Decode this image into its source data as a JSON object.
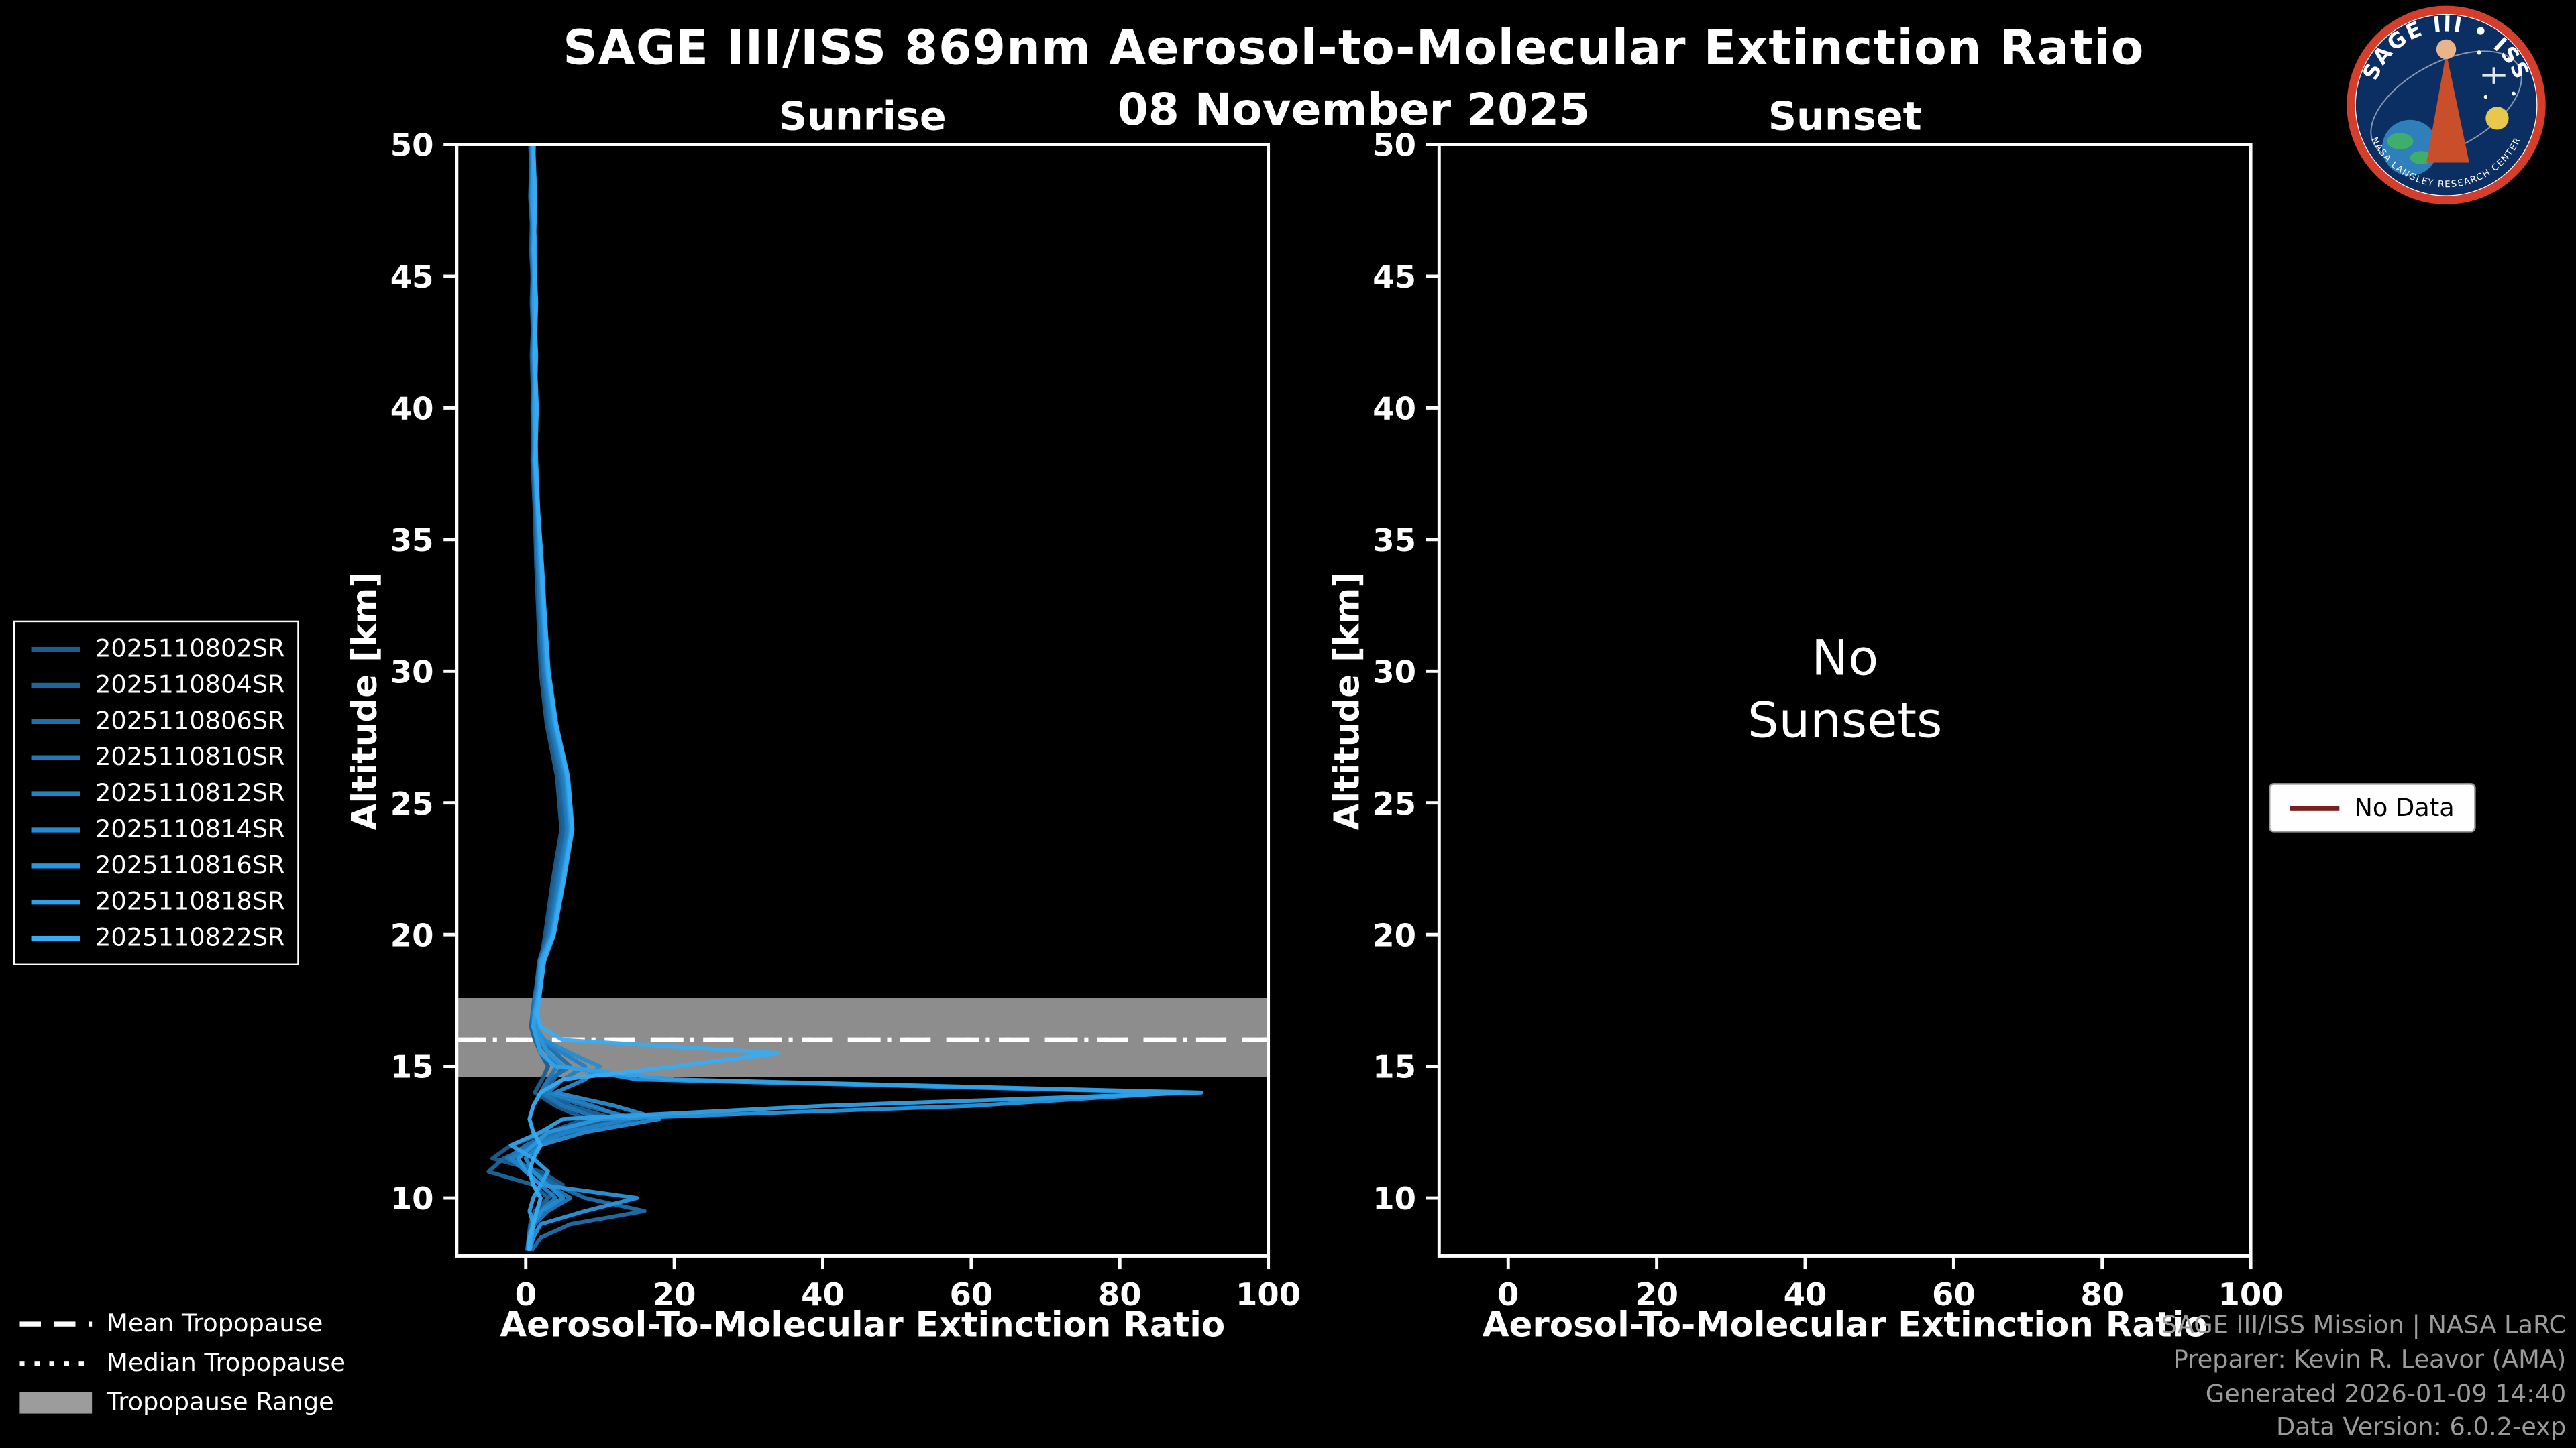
{
  "page": {
    "title": "SAGE III/ISS 869nm Aerosol-to-Molecular Extinction Ratio",
    "date": "08 November 2025",
    "footer": {
      "line1": "SAGE III/ISS Mission | NASA LaRC",
      "line2": "Preparer: Kevin R. Leavor (AMA)",
      "line3": "Generated 2026-01-09 14:40",
      "line4": "Data Version: 6.0.2-exp"
    }
  },
  "logo": {
    "title": "SAGE III • ISS",
    "ring_text": "NASA LANGLEY RESEARCH CENTER"
  },
  "panels": {
    "sunrise": {
      "label": "Sunrise"
    },
    "sunset": {
      "label": "Sunset",
      "empty_line1": "No",
      "empty_line2": "Sunsets"
    }
  },
  "axes": {
    "xlabel": "Aerosol-To-Molecular Extinction Ratio",
    "ylabel": "Altitude [km]",
    "xlim": [
      -9.3,
      100
    ],
    "ylim": [
      7.8,
      50
    ],
    "xticks": [
      0,
      20,
      40,
      60,
      80,
      100
    ],
    "yticks": [
      10,
      15,
      20,
      25,
      30,
      35,
      40,
      45,
      50
    ]
  },
  "legends": {
    "tropopause": {
      "mean_label": "Mean Tropopause",
      "median_label": "Median Tropopause",
      "range_label": "Tropopause Range"
    },
    "no_data": {
      "label": "No Data",
      "color": "#7a1f1f"
    }
  },
  "chart_data": {
    "type": "line",
    "title": "SAGE III/ISS 869nm Aerosol-to-Molecular Extinction Ratio",
    "subtitle": "08 November 2025",
    "xlabel": "Aerosol-To-Molecular Extinction Ratio",
    "ylabel": "Altitude [km]",
    "xlim": [
      -9.3,
      100
    ],
    "ylim": [
      7.8,
      50
    ],
    "grid": false,
    "tropopause": {
      "mean_km": 16.0,
      "median_km": 16.0,
      "range_km": [
        14.6,
        17.6
      ]
    },
    "altitudes_km": [
      50,
      48,
      46,
      44,
      42,
      40,
      38,
      36,
      34,
      32,
      30,
      28,
      26,
      24,
      22,
      20,
      19,
      18,
      17.5,
      17,
      16.5,
      16,
      15.5,
      15,
      14.5,
      14,
      13.5,
      13,
      12.5,
      12,
      11.5,
      11,
      10.5,
      10,
      9.5,
      9,
      8.5,
      8
    ],
    "series": [
      {
        "name": "2025110802SR",
        "color": "#1b5e8f",
        "values": [
          0.6,
          0.9,
          0.7,
          1.1,
          0.8,
          1.0,
          0.9,
          1.2,
          1.4,
          1.7,
          2.0,
          2.8,
          4.2,
          4.8,
          3.6,
          2.6,
          2.0,
          1.5,
          1.2,
          0.9,
          0.7,
          1.2,
          2.0,
          3.0,
          2.2,
          1.2,
          4.0,
          8.0,
          3.0,
          -2.0,
          -4.5,
          2.0,
          5.0,
          3.0,
          1.2,
          0.6,
          0.4,
          0.3
        ]
      },
      {
        "name": "2025110804SR",
        "color": "#1d669c",
        "values": [
          0.8,
          0.6,
          1.0,
          0.8,
          1.1,
          0.9,
          1.1,
          1.3,
          1.6,
          1.9,
          2.3,
          3.1,
          4.6,
          5.2,
          3.9,
          2.9,
          1.8,
          1.4,
          1.1,
          0.9,
          0.8,
          1.5,
          3.0,
          5.0,
          3.8,
          2.0,
          6.0,
          12.0,
          5.0,
          1.0,
          -3.0,
          -5.0,
          1.0,
          3.0,
          2.0,
          1.0,
          0.5,
          0.3
        ]
      },
      {
        "name": "2025110806SR",
        "color": "#1f6fab",
        "values": [
          0.7,
          1.0,
          0.8,
          1.2,
          0.9,
          1.2,
          1.0,
          1.4,
          1.7,
          2.0,
          2.4,
          3.3,
          4.8,
          5.5,
          4.2,
          3.1,
          2.1,
          1.6,
          1.3,
          1.0,
          1.2,
          2.0,
          4.0,
          6.0,
          3.2,
          2.2,
          8.0,
          15.0,
          6.0,
          2.0,
          -1.5,
          1.0,
          4.0,
          8.0,
          16.0,
          6.0,
          2.0,
          0.8
        ]
      },
      {
        "name": "2025110810SR",
        "color": "#2178b8",
        "values": [
          0.9,
          0.7,
          1.1,
          0.9,
          1.2,
          1.0,
          1.2,
          1.4,
          1.6,
          2.0,
          2.5,
          3.4,
          5.0,
          5.6,
          4.4,
          3.2,
          1.9,
          1.5,
          1.2,
          1.0,
          1.0,
          1.8,
          3.0,
          4.2,
          3.0,
          2.0,
          5.0,
          10.0,
          4.0,
          0.0,
          -2.5,
          1.0,
          3.0,
          6.0,
          3.0,
          1.2,
          0.5,
          0.3
        ]
      },
      {
        "name": "2025110812SR",
        "color": "#2382c5",
        "values": [
          0.8,
          1.1,
          0.9,
          1.3,
          1.0,
          1.3,
          1.1,
          1.5,
          1.8,
          2.2,
          2.7,
          3.6,
          5.2,
          5.8,
          4.6,
          3.4,
          2.0,
          1.7,
          1.4,
          1.1,
          1.0,
          2.0,
          5.0,
          8.0,
          5.0,
          3.0,
          9.0,
          14.0,
          5.5,
          1.0,
          -2.0,
          0.0,
          2.0,
          4.0,
          2.0,
          0.8,
          0.4,
          0.2
        ]
      },
      {
        "name": "2025110814SR",
        "color": "#268cd2",
        "values": [
          1.0,
          0.8,
          1.2,
          1.0,
          1.3,
          1.1,
          1.3,
          1.6,
          1.9,
          2.3,
          2.8,
          3.8,
          5.4,
          6.0,
          4.8,
          3.5,
          2.1,
          1.8,
          1.5,
          1.2,
          1.3,
          2.5,
          6.0,
          10.0,
          8.0,
          4.0,
          12.0,
          18.0,
          8.0,
          2.0,
          0.0,
          1.0,
          3.0,
          5.0,
          2.2,
          1.0,
          0.5,
          0.3
        ]
      },
      {
        "name": "2025110816SR",
        "color": "#2a96dd",
        "values": [
          0.9,
          1.2,
          1.0,
          1.3,
          1.1,
          1.4,
          1.2,
          1.6,
          2.0,
          2.4,
          2.9,
          3.9,
          5.5,
          6.1,
          4.9,
          3.6,
          2.0,
          1.8,
          1.5,
          1.2,
          1.5,
          2.0,
          3.0,
          5.0,
          15.0,
          88.0,
          60.0,
          10.0,
          3.0,
          1.0,
          -1.0,
          0.0,
          2.0,
          15.0,
          8.0,
          2.0,
          1.0,
          0.5
        ]
      },
      {
        "name": "2025110818SR",
        "color": "#30a1e8",
        "values": [
          1.1,
          0.9,
          1.3,
          1.1,
          1.4,
          1.2,
          1.4,
          1.7,
          2.1,
          2.5,
          3.0,
          4.0,
          5.6,
          6.2,
          5.0,
          3.7,
          2.2,
          2.0,
          1.6,
          1.2,
          1.0,
          1.5,
          2.0,
          4.0,
          20.0,
          91.0,
          40.0,
          5.0,
          2.0,
          -2.0,
          1.0,
          3.0,
          2.0,
          1.0,
          0.5,
          1.0,
          0.8,
          0.5
        ]
      },
      {
        "name": "2025110822SR",
        "color": "#38acf2",
        "values": [
          1.0,
          1.3,
          1.1,
          1.4,
          1.2,
          1.5,
          1.3,
          1.7,
          2.2,
          2.6,
          3.1,
          4.1,
          5.7,
          6.3,
          5.1,
          3.8,
          2.5,
          2.0,
          1.8,
          1.5,
          2.0,
          5.0,
          34.0,
          20.0,
          5.0,
          2.0,
          1.0,
          0.5,
          1.0,
          2.0,
          1.0,
          0.5,
          1.0,
          2.0,
          1.5,
          1.0,
          0.5,
          0.4
        ]
      }
    ],
    "sunset_series": []
  }
}
